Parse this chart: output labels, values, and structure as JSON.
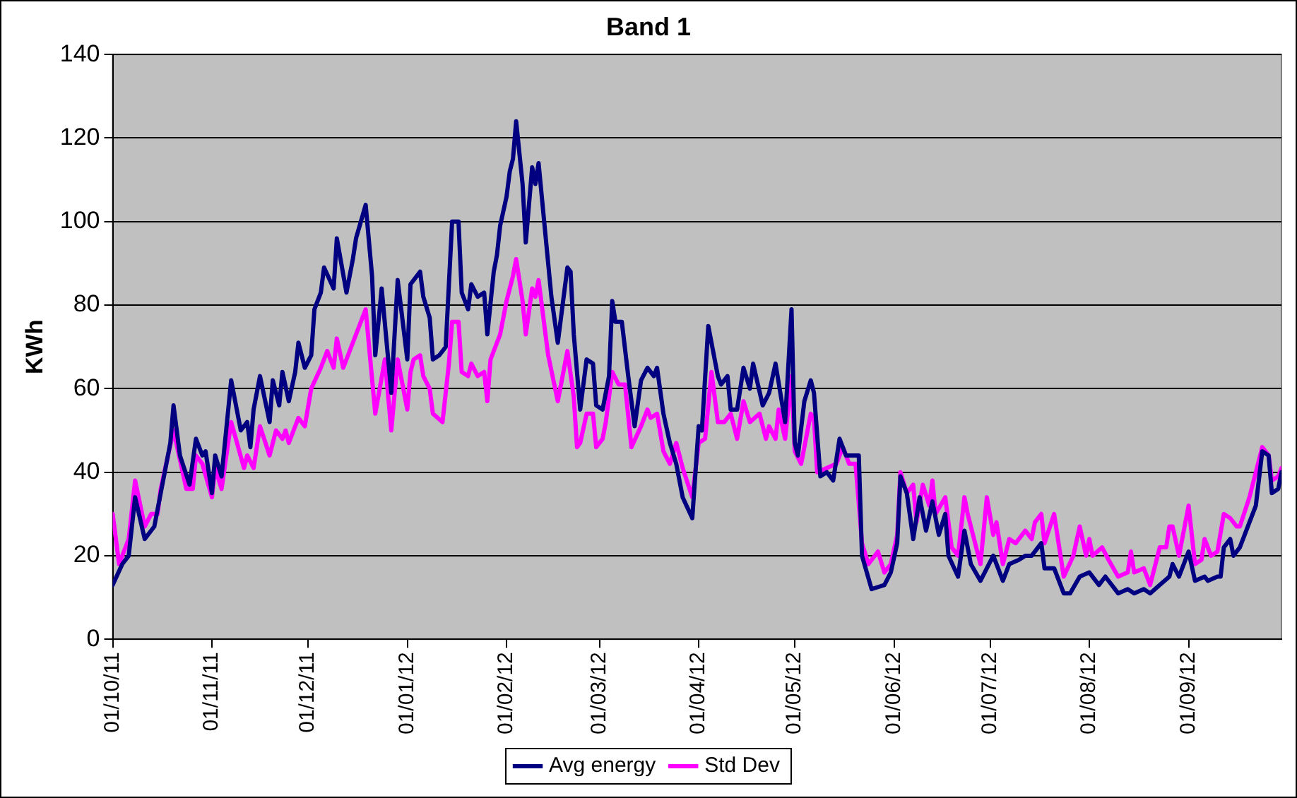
{
  "chart_data": {
    "type": "line",
    "title": "Band 1",
    "ylabel": "KWh",
    "xlim": [
      "2011-10-01",
      "2012-09-30"
    ],
    "xticks": [
      {
        "value": "2011-10-01",
        "label": "01/10/11"
      },
      {
        "value": "2011-11-01",
        "label": "01/11/11"
      },
      {
        "value": "2011-12-01",
        "label": "01/12/11"
      },
      {
        "value": "2012-01-01",
        "label": "01/01/12"
      },
      {
        "value": "2012-02-01",
        "label": "01/02/12"
      },
      {
        "value": "2012-03-01",
        "label": "01/03/12"
      },
      {
        "value": "2012-04-01",
        "label": "01/04/12"
      },
      {
        "value": "2012-05-01",
        "label": "01/05/12"
      },
      {
        "value": "2012-06-01",
        "label": "01/06/12"
      },
      {
        "value": "2012-07-01",
        "label": "01/07/12"
      },
      {
        "value": "2012-08-01",
        "label": "01/08/12"
      },
      {
        "value": "2012-09-01",
        "label": "01/09/12"
      }
    ],
    "ylim": [
      0,
      140
    ],
    "yticks": [
      0,
      20,
      40,
      60,
      80,
      100,
      120,
      140
    ],
    "grid": "y",
    "legend": "bottom",
    "marker": "none",
    "line_style": "solid",
    "series": [
      {
        "name": "Avg energy",
        "color": "#000080",
        "x": [
          "2011-10-01",
          "2011-10-04",
          "2011-10-06",
          "2011-10-08",
          "2011-10-11",
          "2011-10-14",
          "2011-10-16",
          "2011-10-19",
          "2011-10-20",
          "2011-10-22",
          "2011-10-25",
          "2011-10-27",
          "2011-10-29",
          "2011-10-30",
          "2011-11-01",
          "2011-11-02",
          "2011-11-04",
          "2011-11-07",
          "2011-11-10",
          "2011-11-12",
          "2011-11-13",
          "2011-11-14",
          "2011-11-16",
          "2011-11-19",
          "2011-11-20",
          "2011-11-22",
          "2011-11-23",
          "2011-11-25",
          "2011-11-27",
          "2011-11-28",
          "2011-11-30",
          "2011-12-02",
          "2011-12-03",
          "2011-12-05",
          "2011-12-06",
          "2011-12-09",
          "2011-12-10",
          "2011-12-13",
          "2011-12-15",
          "2011-12-16",
          "2011-12-19",
          "2011-12-21",
          "2011-12-22",
          "2011-12-24",
          "2011-12-27",
          "2011-12-29",
          "2012-01-01",
          "2012-01-02",
          "2012-01-03",
          "2012-01-05",
          "2012-01-06",
          "2012-01-08",
          "2012-01-09",
          "2012-01-11",
          "2012-01-13",
          "2012-01-15",
          "2012-01-17",
          "2012-01-18",
          "2012-01-20",
          "2012-01-21",
          "2012-01-23",
          "2012-01-25",
          "2012-01-26",
          "2012-01-28",
          "2012-01-29",
          "2012-01-30",
          "2012-02-01",
          "2012-02-02",
          "2012-02-03",
          "2012-02-04",
          "2012-02-06",
          "2012-02-07",
          "2012-02-09",
          "2012-02-10",
          "2012-02-11",
          "2012-02-14",
          "2012-02-15",
          "2012-02-17",
          "2012-02-20",
          "2012-02-21",
          "2012-02-22",
          "2012-02-24",
          "2012-02-26",
          "2012-02-28",
          "2012-02-29",
          "2012-03-02",
          "2012-03-04",
          "2012-03-05",
          "2012-03-06",
          "2012-03-08",
          "2012-03-10",
          "2012-03-12",
          "2012-03-14",
          "2012-03-16",
          "2012-03-18",
          "2012-03-19",
          "2012-03-21",
          "2012-03-23",
          "2012-03-25",
          "2012-03-27",
          "2012-03-30",
          "2012-04-01",
          "2012-04-02",
          "2012-04-04",
          "2012-04-07",
          "2012-04-08",
          "2012-04-10",
          "2012-04-11",
          "2012-04-13",
          "2012-04-15",
          "2012-04-17",
          "2012-04-18",
          "2012-04-21",
          "2012-04-23",
          "2012-04-25",
          "2012-04-28",
          "2012-04-30",
          "2012-05-01",
          "2012-05-02",
          "2012-05-04",
          "2012-05-06",
          "2012-05-07",
          "2012-05-09",
          "2012-05-11",
          "2012-05-13",
          "2012-05-15",
          "2012-05-17",
          "2012-05-21",
          "2012-05-22",
          "2012-05-25",
          "2012-05-29",
          "2012-05-31",
          "2012-06-02",
          "2012-06-03",
          "2012-06-05",
          "2012-06-07",
          "2012-06-09",
          "2012-06-11",
          "2012-06-13",
          "2012-06-15",
          "2012-06-17",
          "2012-06-18",
          "2012-06-21",
          "2012-06-23",
          "2012-06-25",
          "2012-06-28",
          "2012-07-02",
          "2012-07-05",
          "2012-07-07",
          "2012-07-10",
          "2012-07-12",
          "2012-07-14",
          "2012-07-17",
          "2012-07-18",
          "2012-07-21",
          "2012-07-24",
          "2012-07-26",
          "2012-07-29",
          "2012-08-01",
          "2012-08-04",
          "2012-08-06",
          "2012-08-10",
          "2012-08-13",
          "2012-08-15",
          "2012-08-18",
          "2012-08-20",
          "2012-08-23",
          "2012-08-26",
          "2012-08-27",
          "2012-08-29",
          "2012-09-01",
          "2012-09-03",
          "2012-09-06",
          "2012-09-07",
          "2012-09-10",
          "2012-09-11",
          "2012-09-12",
          "2012-09-14",
          "2012-09-15",
          "2012-09-17",
          "2012-09-20",
          "2012-09-22",
          "2012-09-24",
          "2012-09-26",
          "2012-09-27",
          "2012-09-29",
          "2012-09-30"
        ],
        "values": [
          13,
          18,
          20,
          34,
          24,
          27,
          35,
          47,
          56,
          44,
          37,
          48,
          44,
          45,
          35,
          44,
          39,
          62,
          50,
          52,
          46,
          55,
          63,
          52,
          62,
          56,
          64,
          57,
          64,
          71,
          65,
          68,
          79,
          83,
          89,
          84,
          96,
          83,
          91,
          96,
          104,
          87,
          68,
          84,
          59,
          86,
          67,
          85,
          86,
          88,
          82,
          77,
          67,
          68,
          70,
          100,
          100,
          83,
          79,
          85,
          82,
          83,
          73,
          88,
          92,
          99,
          106,
          112,
          115,
          124,
          109,
          95,
          113,
          109,
          114,
          90,
          82,
          71,
          89,
          88,
          73,
          55,
          67,
          66,
          56,
          55,
          63,
          81,
          76,
          76,
          63,
          51,
          62,
          65,
          63,
          65,
          54,
          47,
          42,
          34,
          29,
          51,
          50,
          75,
          63,
          61,
          63,
          55,
          55,
          65,
          60,
          66,
          56,
          59,
          66,
          52,
          79,
          47,
          44,
          57,
          62,
          59,
          39,
          40,
          38,
          48,
          44,
          44,
          20,
          12,
          13,
          16,
          23,
          39,
          35,
          24,
          34,
          26,
          33,
          25,
          30,
          20,
          15,
          26,
          18,
          14,
          20,
          14,
          18,
          19,
          20,
          20,
          23,
          17,
          17,
          11,
          11,
          15,
          16,
          13,
          15,
          11,
          12,
          11,
          12,
          11,
          13,
          15,
          18,
          15,
          21,
          14,
          15,
          14,
          15,
          15,
          22,
          24,
          20,
          22,
          28,
          32,
          45,
          44,
          35,
          36,
          40
        ]
      },
      {
        "name": "Std Dev",
        "color": "#ff00ff",
        "x": [
          "2011-10-01",
          "2011-10-03",
          "2011-10-06",
          "2011-10-08",
          "2011-10-11",
          "2011-10-13",
          "2011-10-15",
          "2011-10-16",
          "2011-10-20",
          "2011-10-24",
          "2011-10-26",
          "2011-10-27",
          "2011-10-29",
          "2011-11-01",
          "2011-11-02",
          "2011-11-04",
          "2011-11-07",
          "2011-11-11",
          "2011-11-12",
          "2011-11-14",
          "2011-11-16",
          "2011-11-19",
          "2011-11-21",
          "2011-11-23",
          "2011-11-24",
          "2011-11-25",
          "2011-11-28",
          "2011-11-30",
          "2011-12-02",
          "2011-12-05",
          "2011-12-07",
          "2011-12-09",
          "2011-12-10",
          "2011-12-12",
          "2011-12-15",
          "2011-12-19",
          "2011-12-22",
          "2011-12-25",
          "2011-12-27",
          "2011-12-29",
          "2012-01-01",
          "2012-01-02",
          "2012-01-03",
          "2012-01-05",
          "2012-01-06",
          "2012-01-08",
          "2012-01-09",
          "2012-01-12",
          "2012-01-14",
          "2012-01-15",
          "2012-01-17",
          "2012-01-18",
          "2012-01-20",
          "2012-01-21",
          "2012-01-23",
          "2012-01-25",
          "2012-01-26",
          "2012-01-27",
          "2012-01-30",
          "2012-02-01",
          "2012-02-03",
          "2012-02-04",
          "2012-02-06",
          "2012-02-07",
          "2012-02-09",
          "2012-02-10",
          "2012-02-11",
          "2012-02-14",
          "2012-02-17",
          "2012-02-20",
          "2012-02-22",
          "2012-02-23",
          "2012-02-24",
          "2012-02-26",
          "2012-02-28",
          "2012-02-29",
          "2012-03-02",
          "2012-03-03",
          "2012-03-05",
          "2012-03-07",
          "2012-03-09",
          "2012-03-11",
          "2012-03-14",
          "2012-03-16",
          "2012-03-17",
          "2012-03-19",
          "2012-03-21",
          "2012-03-23",
          "2012-03-25",
          "2012-03-27",
          "2012-03-30",
          "2012-04-01",
          "2012-04-03",
          "2012-04-05",
          "2012-04-07",
          "2012-04-09",
          "2012-04-11",
          "2012-04-13",
          "2012-04-15",
          "2012-04-17",
          "2012-04-20",
          "2012-04-22",
          "2012-04-23",
          "2012-04-25",
          "2012-04-26",
          "2012-04-28",
          "2012-04-30",
          "2012-05-01",
          "2012-05-03",
          "2012-05-06",
          "2012-05-07",
          "2012-05-08",
          "2012-05-11",
          "2012-05-14",
          "2012-05-16",
          "2012-05-18",
          "2012-05-20",
          "2012-05-22",
          "2012-05-24",
          "2012-05-27",
          "2012-05-29",
          "2012-05-31",
          "2012-06-02",
          "2012-06-03",
          "2012-06-05",
          "2012-06-07",
          "2012-06-08",
          "2012-06-10",
          "2012-06-12",
          "2012-06-13",
          "2012-06-14",
          "2012-06-17",
          "2012-06-19",
          "2012-06-21",
          "2012-06-23",
          "2012-06-24",
          "2012-06-28",
          "2012-06-30",
          "2012-07-02",
          "2012-07-03",
          "2012-07-05",
          "2012-07-07",
          "2012-07-09",
          "2012-07-12",
          "2012-07-14",
          "2012-07-15",
          "2012-07-17",
          "2012-07-18",
          "2012-07-21",
          "2012-07-24",
          "2012-07-27",
          "2012-07-29",
          "2012-07-31",
          "2012-08-01",
          "2012-08-02",
          "2012-08-05",
          "2012-08-07",
          "2012-08-10",
          "2012-08-13",
          "2012-08-14",
          "2012-08-15",
          "2012-08-18",
          "2012-08-20",
          "2012-08-23",
          "2012-08-25",
          "2012-08-26",
          "2012-08-27",
          "2012-08-29",
          "2012-09-01",
          "2012-09-03",
          "2012-09-05",
          "2012-09-06",
          "2012-09-08",
          "2012-09-10",
          "2012-09-12",
          "2012-09-14",
          "2012-09-16",
          "2012-09-17",
          "2012-09-20",
          "2012-09-21",
          "2012-09-24",
          "2012-09-26",
          "2012-09-27",
          "2012-09-29",
          "2012-09-30"
        ],
        "values": [
          30,
          18,
          24,
          38,
          27,
          30,
          30,
          36,
          50,
          36,
          36,
          44,
          42,
          34,
          41,
          36,
          52,
          41,
          44,
          41,
          51,
          44,
          50,
          48,
          50,
          47,
          53,
          51,
          60,
          65,
          69,
          65,
          72,
          65,
          71,
          79,
          54,
          67,
          50,
          67,
          55,
          64,
          67,
          68,
          63,
          60,
          54,
          52,
          66,
          76,
          76,
          64,
          63,
          66,
          63,
          64,
          57,
          67,
          73,
          81,
          87,
          91,
          81,
          73,
          84,
          82,
          86,
          68,
          57,
          69,
          58,
          46,
          47,
          54,
          54,
          46,
          48,
          52,
          64,
          61,
          61,
          46,
          51,
          55,
          53,
          54,
          45,
          42,
          47,
          41,
          34,
          47,
          48,
          64,
          52,
          52,
          54,
          48,
          57,
          52,
          54,
          48,
          51,
          48,
          55,
          48,
          63,
          45,
          42,
          54,
          53,
          40,
          41,
          42,
          46,
          42,
          42,
          23,
          18,
          21,
          16,
          18,
          25,
          40,
          35,
          37,
          28,
          37,
          32,
          38,
          30,
          34,
          22,
          20,
          34,
          30,
          18,
          34,
          25,
          28,
          18,
          24,
          23,
          26,
          24,
          28,
          30,
          23,
          30,
          15,
          20,
          27,
          20,
          24,
          20,
          22,
          19,
          15,
          16,
          21,
          16,
          17,
          13,
          22,
          22,
          27,
          27,
          20,
          32,
          18,
          19,
          24,
          20,
          21,
          30,
          29,
          27,
          27,
          34,
          37,
          46,
          44,
          38,
          39,
          41
        ]
      }
    ]
  }
}
